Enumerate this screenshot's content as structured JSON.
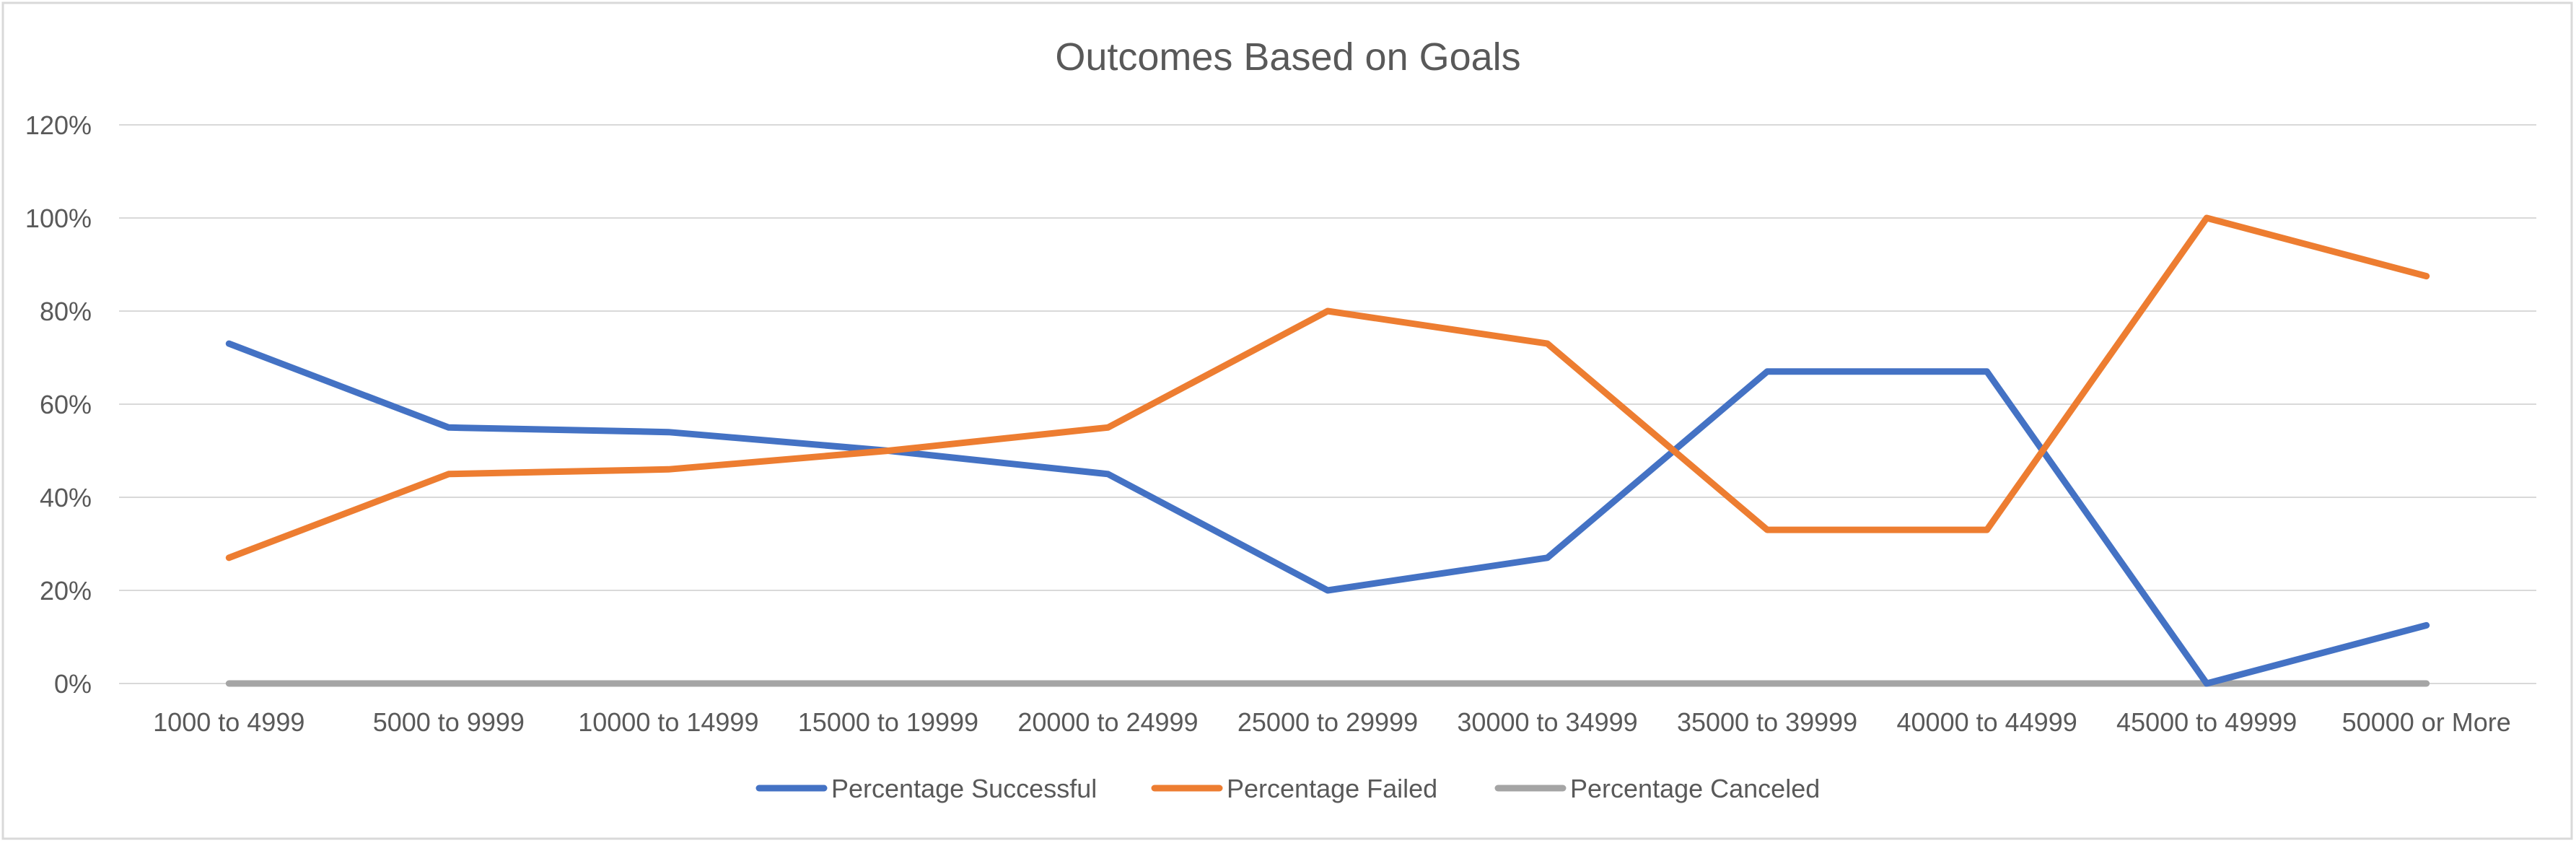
{
  "chart_data": {
    "type": "line",
    "title": "Outcomes Based on Goals",
    "xlabel": "",
    "ylabel": "",
    "categories": [
      "1000 to 4999",
      "5000 to 9999",
      "10000 to 14999",
      "15000 to 19999",
      "20000 to 24999",
      "25000 to 29999",
      "30000 to 34999",
      "35000 to 39999",
      "40000 to 44999",
      "45000 to 49999",
      "50000 or More"
    ],
    "yticks": [
      "0%",
      "20%",
      "40%",
      "60%",
      "80%",
      "100%",
      "120%"
    ],
    "ylim": [
      0,
      1.2
    ],
    "grid": true,
    "legend_position": "bottom",
    "series": [
      {
        "name": "Percentage Successful",
        "color": "#4472C4",
        "values": [
          0.73,
          0.55,
          0.54,
          0.5,
          0.45,
          0.2,
          0.27,
          0.67,
          0.67,
          0.0,
          0.125
        ]
      },
      {
        "name": "Percentage Failed",
        "color": "#ED7D31",
        "values": [
          0.27,
          0.45,
          0.46,
          0.5,
          0.55,
          0.8,
          0.73,
          0.33,
          0.33,
          1.0,
          0.875
        ]
      },
      {
        "name": "Percentage Canceled",
        "color": "#A5A5A5",
        "values": [
          0,
          0,
          0,
          0,
          0,
          0,
          0,
          0,
          0,
          0,
          0
        ]
      }
    ]
  }
}
